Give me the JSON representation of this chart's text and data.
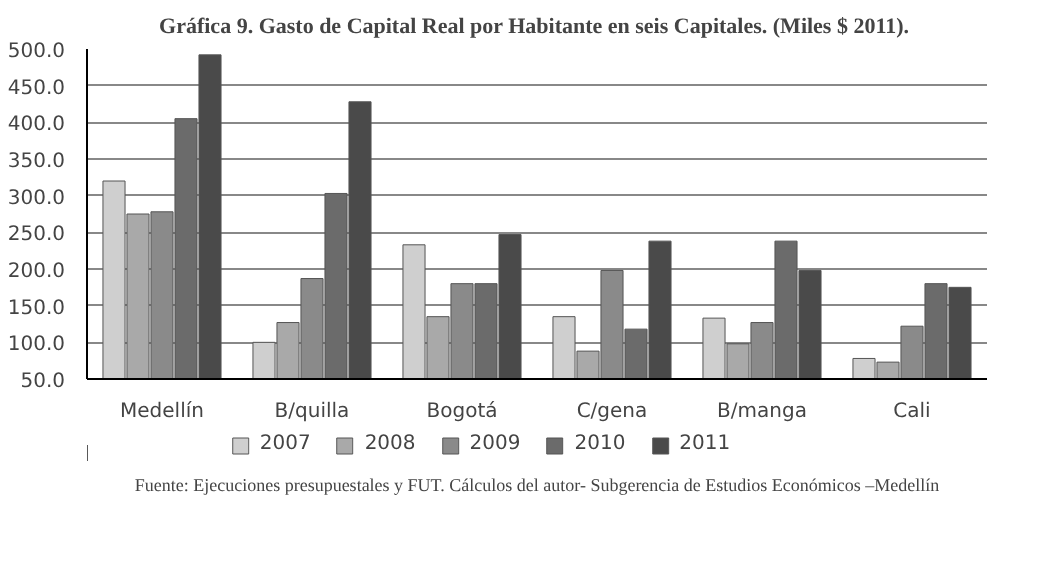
{
  "chart_data": {
    "type": "bar",
    "title": "Gráfica 9. Gasto de Capital Real por Habitante en seis Capitales.  (Miles $ 2011).",
    "categories": [
      "Medellín",
      "B/quilla",
      "Bogotá",
      "C/gena",
      "B/manga",
      "Cali"
    ],
    "series": [
      {
        "name": "2007",
        "color": "#cfcfcf",
        "values": [
          320,
          100,
          233,
          135,
          133,
          78
        ]
      },
      {
        "name": "2008",
        "color": "#a9a9a9",
        "values": [
          275,
          127,
          135,
          88,
          98,
          73
        ]
      },
      {
        "name": "2009",
        "color": "#8a8a8a",
        "values": [
          278,
          187,
          180,
          198,
          127,
          122
        ]
      },
      {
        "name": "2010",
        "color": "#6b6b6b",
        "values": [
          405,
          303,
          180,
          118,
          238,
          180
        ]
      },
      {
        "name": "2011",
        "color": "#4a4a4a",
        "values": [
          492,
          428,
          247,
          238,
          198,
          175
        ]
      }
    ],
    "ylim": [
      50,
      500
    ],
    "yticks": [
      {
        "value": 50,
        "label": "50.0"
      },
      {
        "value": 100,
        "label": "100.0"
      },
      {
        "value": 150,
        "label": "150.0"
      },
      {
        "value": 200,
        "label": "200.0"
      },
      {
        "value": 250,
        "label": "250.0"
      },
      {
        "value": 300,
        "label": "300.0"
      },
      {
        "value": 350,
        "label": "350.0"
      },
      {
        "value": 400,
        "label": "400.0"
      },
      {
        "value": 450,
        "label": "450.0"
      },
      {
        "value": 500,
        "label": "500.0"
      }
    ],
    "grid": "y",
    "legend": "bottom",
    "annotations": [
      "Fuente: Ejecuciones presupuestales y FUT. Cálculos del autor- Subgerencia de Estudios Económicos –Medellín"
    ]
  }
}
